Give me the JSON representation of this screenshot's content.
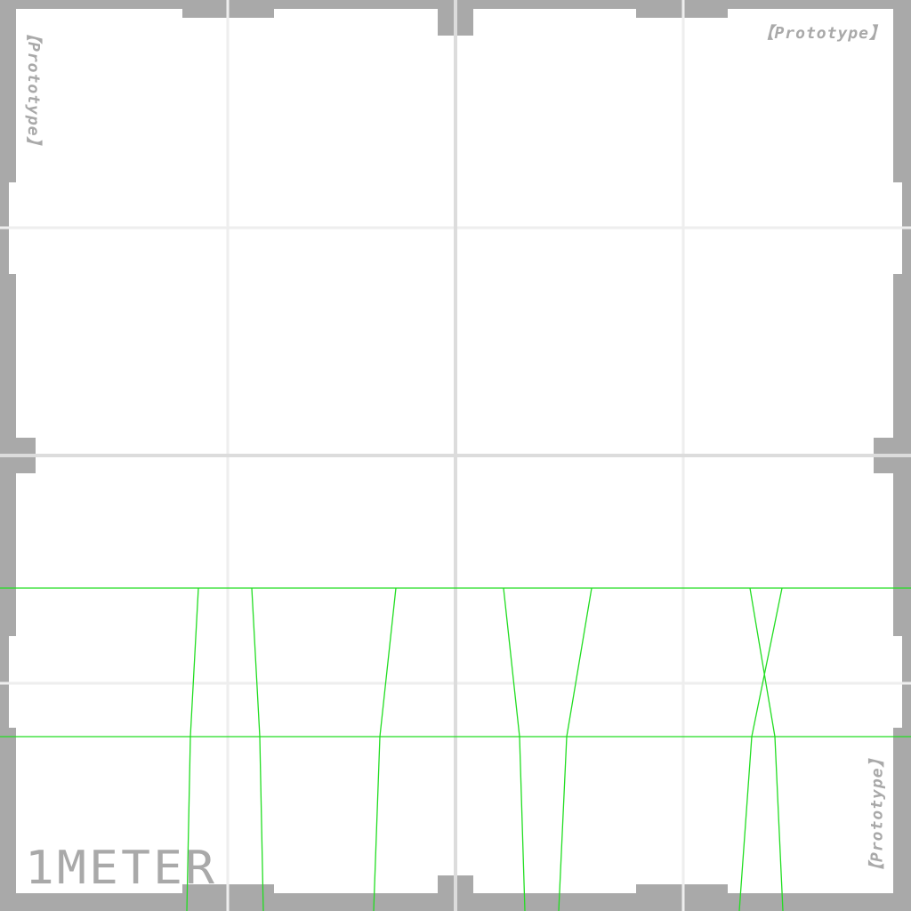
{
  "texture": {
    "watermark": "【Prototype】",
    "scale_label": "1METER"
  },
  "colors": {
    "border": "#a9a9a9",
    "surface": "#ffffff",
    "grid_major": "#dcdcdc",
    "grid_minor": "#eeeeee",
    "overlay_lines": "#22dd22"
  }
}
